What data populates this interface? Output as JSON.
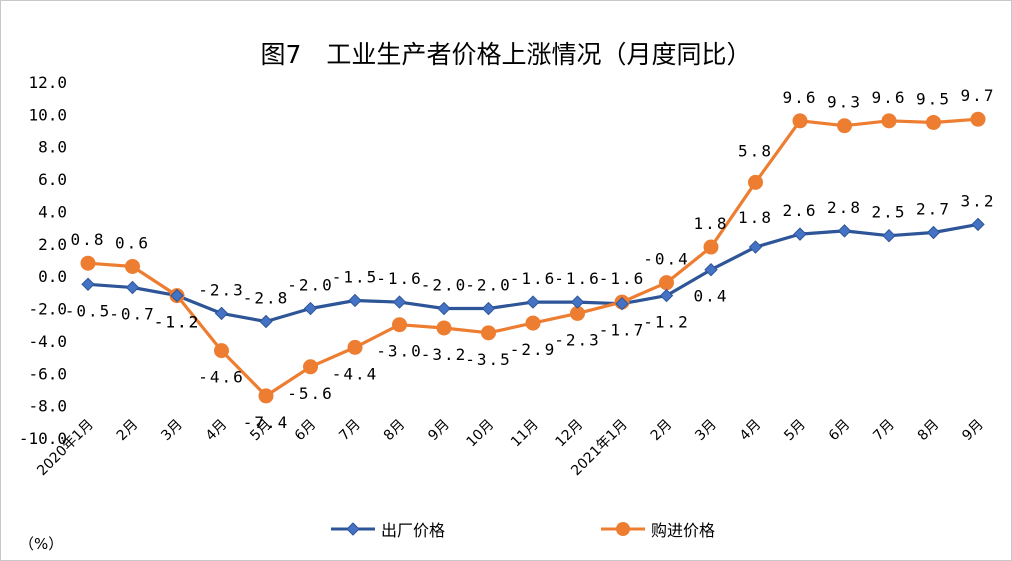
{
  "chart_data": {
    "type": "line",
    "title": "图7　工业生产者价格上涨情况（月度同比）",
    "unit_label": "（%）",
    "ylim": [
      -10,
      12
    ],
    "y_ticks": [
      "12.0",
      "10.0",
      "8.0",
      "6.0",
      "4.0",
      "2.0",
      "0.0",
      "-2.0",
      "-4.0",
      "-6.0",
      "-8.0",
      "-10.0"
    ],
    "categories": [
      "2020年1月",
      "2月",
      "3月",
      "4月",
      "5月",
      "6月",
      "7月",
      "8月",
      "9月",
      "10月",
      "11月",
      "12月",
      "2021年1月",
      "2月",
      "3月",
      "4月",
      "5月",
      "6月",
      "7月",
      "8月",
      "9月"
    ],
    "grid": false,
    "legend_position": "bottom",
    "series": [
      {
        "name": "出厂价格",
        "color": "#2e5597",
        "marker": "diamond",
        "values": [
          -0.5,
          -0.7,
          -1.2,
          -2.3,
          -2.8,
          -2.0,
          -1.5,
          -1.6,
          -2.0,
          -2.0,
          -1.6,
          -1.6,
          -1.7,
          -1.2,
          0.4,
          1.8,
          2.6,
          2.8,
          2.5,
          2.7,
          3.2
        ],
        "labels": [
          "-0.5",
          "-0.7",
          "-1.2",
          "-2.3",
          "-2.8",
          "-2.0",
          "-1.5",
          "-1.6",
          "-2.0",
          "-2.0",
          "-1.6",
          "-1.6",
          "-1.7",
          "-1.2",
          "0.4",
          "1.8",
          "2.6",
          "2.8",
          "2.5",
          "2.7",
          "3.2"
        ]
      },
      {
        "name": "购进价格",
        "color": "#ed7d31",
        "marker": "circle",
        "values": [
          0.8,
          0.6,
          -1.2,
          -4.6,
          -7.4,
          -5.6,
          -4.4,
          -3.0,
          -3.2,
          -3.5,
          -2.9,
          -2.3,
          -1.6,
          -0.4,
          1.8,
          5.8,
          9.6,
          9.3,
          9.6,
          9.5,
          9.7
        ],
        "labels": [
          "0.8",
          "0.6",
          "-1.2",
          "-4.6",
          "-7.4",
          "-5.6",
          "-4.4",
          "-3.0",
          "-3.2",
          "-3.5",
          "-2.9",
          "-2.3",
          "-1.6",
          "-0.4",
          "1.8",
          "5.8",
          "9.6",
          "9.3",
          "9.6",
          "9.5",
          "9.7"
        ]
      }
    ]
  }
}
